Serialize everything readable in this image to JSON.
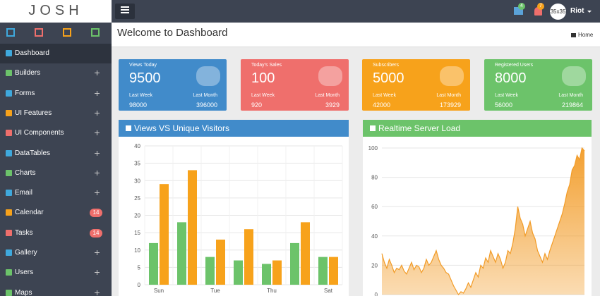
{
  "header": {
    "logo": "JOSH",
    "notifications": {
      "messages": 4,
      "alerts": 7
    },
    "avatar": "35x35",
    "user": "Riot"
  },
  "sidebar": {
    "menu": [
      {
        "label": "Dashboard"
      },
      {
        "label": "Builders"
      },
      {
        "label": "Forms"
      },
      {
        "label": "UI Features"
      },
      {
        "label": "UI Components"
      },
      {
        "label": "DataTables"
      },
      {
        "label": "Charts"
      },
      {
        "label": "Email"
      },
      {
        "label": "Calendar",
        "badge": 14
      },
      {
        "label": "Tasks",
        "badge": 14
      },
      {
        "label": "Gallery"
      },
      {
        "label": "Users"
      },
      {
        "label": "Maps"
      }
    ]
  },
  "page": {
    "title": "Welcome to Dashboard",
    "breadcrumb": "Home"
  },
  "stats": [
    {
      "label": "Views Today",
      "value": 9500,
      "last_week_label": "Last Week",
      "last_week": 98000,
      "last_month_label": "Last Month",
      "last_month": 396000
    },
    {
      "label": "Today's Sales",
      "value": 100,
      "last_week_label": "Last Week",
      "last_week": 920,
      "last_month_label": "Last Month",
      "last_month": 3929
    },
    {
      "label": "Subscribers",
      "value": 5000,
      "last_week_label": "Last Week",
      "last_week": 42000,
      "last_month_label": "Last Month",
      "last_month": 173929
    },
    {
      "label": "Registered Users",
      "value": 8000,
      "last_week_label": "Last Week",
      "last_week": 56000,
      "last_month_label": "Last Month",
      "last_month": 219864
    }
  ],
  "chart_data": [
    {
      "type": "bar",
      "title": "Views VS Unique Visitors",
      "categories": [
        "Sun",
        null,
        "Tue",
        null,
        "Thu",
        null,
        "Sat"
      ],
      "series": [
        {
          "color": "#6cc36a",
          "values": [
            12,
            18,
            8,
            7,
            6,
            12,
            8
          ]
        },
        {
          "color": "#f7a21b",
          "values": [
            29,
            33,
            13,
            16,
            7,
            18,
            8
          ]
        }
      ],
      "ylim": [
        0,
        40
      ],
      "yticks": [
        0,
        5,
        10,
        15,
        20,
        25,
        30,
        35,
        40
      ],
      "grid": true
    },
    {
      "type": "line",
      "title": "Realtime Server Load",
      "color": "#f29b26",
      "values": [
        28,
        22,
        18,
        24,
        20,
        15,
        18,
        17,
        20,
        16,
        14,
        18,
        22,
        17,
        20,
        19,
        15,
        18,
        24,
        20,
        22,
        26,
        30,
        24,
        20,
        18,
        15,
        14,
        10,
        6,
        3,
        0,
        2,
        1,
        4,
        8,
        5,
        10,
        15,
        12,
        20,
        18,
        25,
        22,
        30,
        26,
        22,
        28,
        24,
        18,
        22,
        30,
        28,
        35,
        45,
        60,
        52,
        48,
        40,
        45,
        50,
        42,
        38,
        30,
        26,
        22,
        28,
        24,
        30,
        35,
        40,
        45,
        50,
        55,
        62,
        70,
        75,
        85,
        88,
        95,
        92,
        100,
        98
      ],
      "ylim": [
        0,
        100
      ],
      "yticks": [
        0,
        20,
        40,
        60,
        80,
        100
      ],
      "grid": true
    }
  ]
}
